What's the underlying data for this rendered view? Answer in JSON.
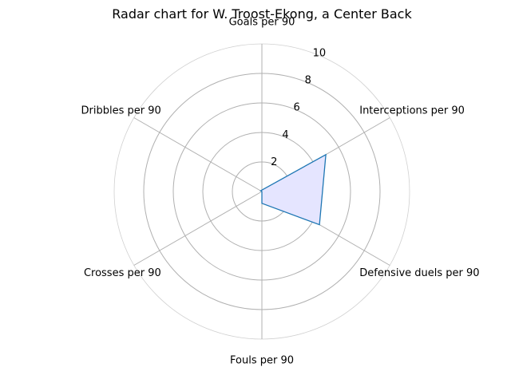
{
  "chart_data": {
    "type": "radar",
    "title": "Radar chart for W. Troost-Ekong, a Center Back",
    "axes": [
      "Goals per 90",
      "Interceptions per 90",
      "Defensive duels per 90",
      "Fouls per 90",
      "Crosses per 90",
      "Dribbles per 90"
    ],
    "rlim": [
      0,
      10
    ],
    "rticks": [
      "2",
      "4",
      "6",
      "8",
      "10"
    ],
    "grid": true,
    "series": [
      {
        "values": [
          0.1,
          5.0,
          4.5,
          0.8,
          0.0,
          0.1
        ],
        "color": "#1f77b4",
        "fill": "#e5e5ff"
      }
    ]
  }
}
